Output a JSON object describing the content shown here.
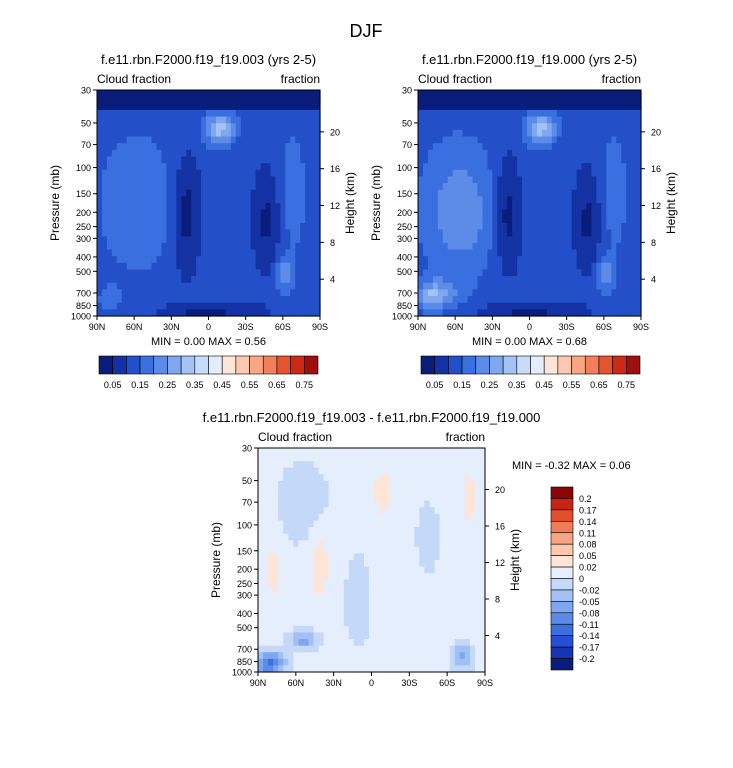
{
  "figure_title": "DJF",
  "colors": {
    "abs_levels": [
      "#0a1d7a",
      "#1432a3",
      "#2350c8",
      "#3a6fe0",
      "#5c8ce8",
      "#7fa8ef",
      "#a4c3f5",
      "#c7dcfa",
      "#e3edfc",
      "#fde6d8",
      "#fcc9b0",
      "#f8a684",
      "#f27f5a",
      "#e5542f",
      "#cc2a14",
      "#a00f0f",
      "#7a0000"
    ],
    "diff_levels": [
      "#0a1d7a",
      "#1735b0",
      "#2550d6",
      "#3a6fe0",
      "#5d8ae6",
      "#7ea7ef",
      "#a2c0f4",
      "#c4d8f8",
      "#e4eefc",
      "#fde6d8",
      "#fbc7ad",
      "#f7a482",
      "#f07c58",
      "#e24f2c",
      "#c72513",
      "#8a0606"
    ]
  },
  "chart_data": [
    {
      "type": "heatmap",
      "title": "f.e11.rbn.F2000.f19_f19.003 (yrs 2-5)",
      "left_label": "Cloud fraction",
      "right_label": "fraction",
      "xlabel": "",
      "ylabel": "Pressure (mb)",
      "ylabel_right": "Height (km)",
      "x_ticks": [
        "90N",
        "60N",
        "30N",
        "0",
        "30S",
        "60S",
        "90S"
      ],
      "x_range": [
        90,
        -90
      ],
      "y_ticks": [
        30,
        50,
        70,
        100,
        150,
        200,
        250,
        300,
        400,
        500,
        700,
        850,
        1000
      ],
      "y_ticks_right": [
        4,
        8,
        12,
        16,
        20
      ],
      "y_range": [
        1000,
        30
      ],
      "min_max_text": "MIN =   0.00  MAX =   0.56",
      "min": 0.0,
      "max": 0.56,
      "colorbar_labels": [
        "0.05",
        "0.15",
        "0.25",
        "0.35",
        "0.45",
        "0.55",
        "0.65",
        "0.75"
      ],
      "colorbar_levels": [
        0.05,
        0.1,
        0.15,
        0.2,
        0.25,
        0.3,
        0.35,
        0.4,
        0.45,
        0.5,
        0.55,
        0.6,
        0.65,
        0.7,
        0.75,
        0.8
      ]
    },
    {
      "type": "heatmap",
      "title": "f.e11.rbn.F2000.f19_f19.000 (yrs 2-5)",
      "left_label": "Cloud fraction",
      "right_label": "fraction",
      "xlabel": "",
      "ylabel": "Pressure (mb)",
      "ylabel_right": "Height (km)",
      "x_ticks": [
        "90N",
        "60N",
        "30N",
        "0",
        "30S",
        "60S",
        "90S"
      ],
      "x_range": [
        90,
        -90
      ],
      "y_ticks": [
        30,
        50,
        70,
        100,
        150,
        200,
        250,
        300,
        400,
        500,
        700,
        850,
        1000
      ],
      "y_ticks_right": [
        4,
        8,
        12,
        16,
        20
      ],
      "y_range": [
        1000,
        30
      ],
      "min_max_text": "MIN =   0.00  MAX =   0.68",
      "min": 0.0,
      "max": 0.68,
      "colorbar_labels": [
        "0.05",
        "0.15",
        "0.25",
        "0.35",
        "0.45",
        "0.55",
        "0.65",
        "0.75"
      ],
      "colorbar_levels": [
        0.05,
        0.1,
        0.15,
        0.2,
        0.25,
        0.3,
        0.35,
        0.4,
        0.45,
        0.5,
        0.55,
        0.6,
        0.65,
        0.7,
        0.75,
        0.8
      ]
    },
    {
      "type": "heatmap",
      "title": "f.e11.rbn.F2000.f19_f19.003 - f.e11.rbn.F2000.f19_f19.000",
      "left_label": "Cloud fraction",
      "right_label": "fraction",
      "xlabel": "",
      "ylabel": "Pressure (mb)",
      "ylabel_right": "Height (km)",
      "x_ticks": [
        "90N",
        "60N",
        "30N",
        "0",
        "30S",
        "60S",
        "90S"
      ],
      "x_range": [
        90,
        -90
      ],
      "y_ticks": [
        30,
        50,
        70,
        100,
        150,
        200,
        250,
        300,
        400,
        500,
        700,
        850,
        1000
      ],
      "y_ticks_right": [
        4,
        8,
        12,
        16,
        20
      ],
      "y_range": [
        1000,
        30
      ],
      "min_max_text": "MIN =  -0.32  MAX =   0.06",
      "min": -0.32,
      "max": 0.06,
      "colorbar_labels": [
        "0.2",
        "0.17",
        "0.14",
        "0.11",
        "0.08",
        "0.05",
        "0.02",
        "0",
        "-0.02",
        "-0.05",
        "-0.08",
        "-0.11",
        "-0.14",
        "-0.17",
        "-0.2"
      ]
    }
  ]
}
